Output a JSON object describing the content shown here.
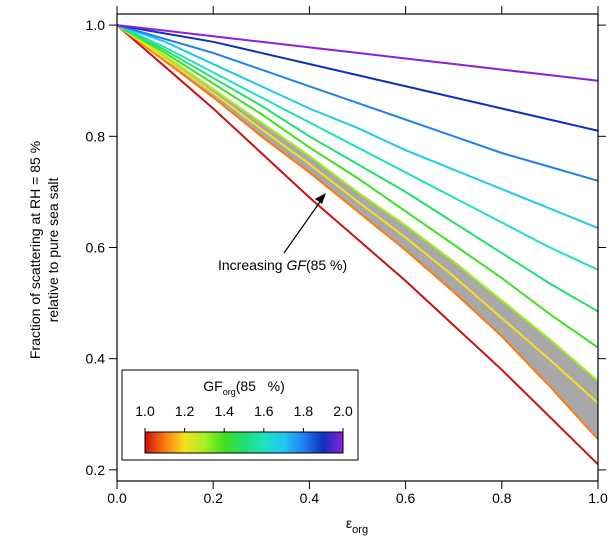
{
  "chart_data": {
    "type": "line",
    "y_label": [
      "Fraction of scattering at RH =  85 %",
      "relative to pure sea salt"
    ],
    "x_label": {
      "main": "ε",
      "sub": "org"
    },
    "x": [
      0,
      0.1,
      0.2,
      0.3,
      0.4,
      0.5,
      0.6,
      0.7,
      0.8,
      0.9,
      1.0
    ],
    "xlim": [
      0,
      1
    ],
    "ylim": [
      0.18,
      1.02
    ],
    "xticks": [
      {
        "value": 0,
        "label": "0.0"
      },
      {
        "value": 0.2,
        "label": "0.2"
      },
      {
        "value": 0.4,
        "label": "0.4"
      },
      {
        "value": 0.6,
        "label": "0.6"
      },
      {
        "value": 0.8,
        "label": "0.8"
      },
      {
        "value": 1,
        "label": "1.0"
      }
    ],
    "yticks": [
      {
        "value": 0.2,
        "label": "0.2"
      },
      {
        "value": 0.4,
        "label": "0.4"
      },
      {
        "value": 0.6,
        "label": "0.6"
      },
      {
        "value": 0.8,
        "label": "0.8"
      },
      {
        "value": 1,
        "label": "1.0"
      }
    ],
    "band": {
      "color": "#a8a8a8",
      "upper": [
        1,
        0.945,
        0.885,
        0.825,
        0.765,
        0.7,
        0.64,
        0.575,
        0.505,
        0.435,
        0.36
      ],
      "lower": [
        1,
        0.935,
        0.87,
        0.8,
        0.735,
        0.665,
        0.595,
        0.52,
        0.44,
        0.35,
        0.255
      ]
    },
    "series": [
      {
        "color": "#cc1010",
        "values": [
          1,
          0.925,
          0.85,
          0.77,
          0.69,
          0.615,
          0.54,
          0.46,
          0.38,
          0.295,
          0.21
        ]
      },
      {
        "color": "#ff7a10",
        "values": [
          1,
          0.935,
          0.87,
          0.8,
          0.735,
          0.665,
          0.595,
          0.52,
          0.44,
          0.35,
          0.255
        ]
      },
      {
        "color": "#f5e020",
        "values": [
          1,
          0.94,
          0.878,
          0.813,
          0.75,
          0.683,
          0.618,
          0.548,
          0.473,
          0.398,
          0.32
        ]
      },
      {
        "color": "#a8f020",
        "values": [
          1,
          0.945,
          0.885,
          0.825,
          0.765,
          0.7,
          0.64,
          0.575,
          0.505,
          0.435,
          0.36
        ]
      },
      {
        "color": "#40e020",
        "values": [
          1,
          0.95,
          0.895,
          0.84,
          0.78,
          0.725,
          0.665,
          0.605,
          0.545,
          0.48,
          0.42
        ]
      },
      {
        "color": "#20e070",
        "values": [
          1,
          0.955,
          0.905,
          0.855,
          0.8,
          0.75,
          0.7,
          0.645,
          0.59,
          0.535,
          0.485
        ]
      },
      {
        "color": "#20e0c0",
        "values": [
          1,
          0.96,
          0.915,
          0.87,
          0.825,
          0.78,
          0.735,
          0.69,
          0.645,
          0.6,
          0.56
        ]
      },
      {
        "color": "#20c8f0",
        "values": [
          1,
          0.97,
          0.93,
          0.89,
          0.85,
          0.815,
          0.775,
          0.74,
          0.705,
          0.67,
          0.635
        ]
      },
      {
        "color": "#2080f0",
        "values": [
          1,
          0.975,
          0.95,
          0.92,
          0.89,
          0.86,
          0.83,
          0.8,
          0.77,
          0.745,
          0.72
        ]
      },
      {
        "color": "#1030c0",
        "values": [
          1,
          0.985,
          0.97,
          0.95,
          0.93,
          0.91,
          0.89,
          0.87,
          0.85,
          0.83,
          0.81
        ]
      },
      {
        "color": "#8a20e0",
        "values": [
          1,
          0.99,
          0.98,
          0.97,
          0.96,
          0.95,
          0.94,
          0.93,
          0.92,
          0.91,
          0.9
        ]
      }
    ],
    "annotation": {
      "prefix": "Increasing ",
      "italic": "GF",
      "suffix": "(85 %)"
    },
    "colorbar": {
      "title": {
        "main": "GF",
        "sub": "org",
        "rest": "(85   %)"
      },
      "lim": [
        1,
        2
      ],
      "ticks": [
        {
          "value": 1,
          "label": "1.0"
        },
        {
          "value": 1.2,
          "label": "1.2"
        },
        {
          "value": 1.4,
          "label": "1.4"
        },
        {
          "value": 1.6,
          "label": "1.6"
        },
        {
          "value": 1.8,
          "label": "1.8"
        },
        {
          "value": 2,
          "label": "2.0"
        }
      ]
    }
  }
}
